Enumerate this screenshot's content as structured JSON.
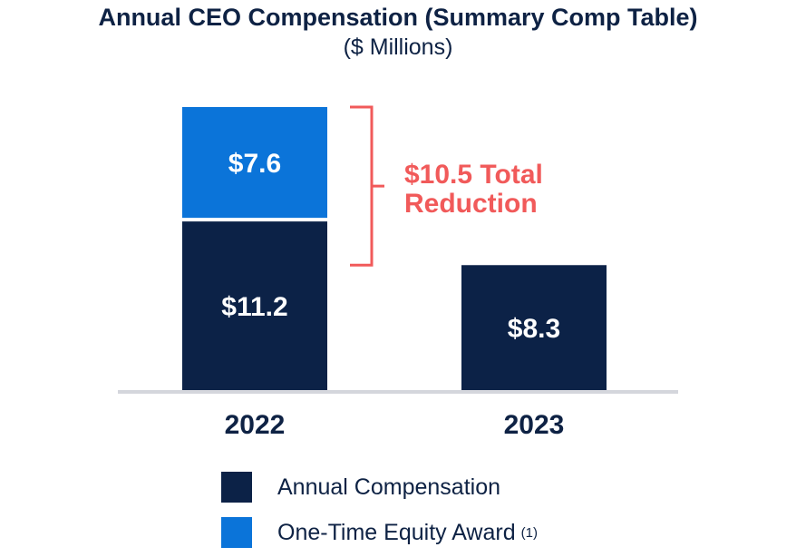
{
  "chart_data": {
    "type": "bar",
    "stacked": true,
    "title": "Annual CEO Compensation (Summary Comp Table)",
    "subtitle": "($ Millions)",
    "categories": [
      "2022",
      "2023"
    ],
    "series": [
      {
        "name": "Annual Compensation",
        "values": [
          11.2,
          8.3
        ],
        "labels": [
          "$11.2",
          "$8.3"
        ],
        "color": "#0c2247"
      },
      {
        "name": "One-Time Equity Award",
        "values": [
          7.6,
          0
        ],
        "labels": [
          "$7.6",
          ""
        ],
        "color": "#0b74d9"
      }
    ],
    "legend_note": "(1)",
    "annotation": {
      "lines": [
        "$10.5 Total",
        "Reduction"
      ],
      "color": "#f15a5a"
    },
    "ylim": [
      0,
      18.8
    ],
    "grid": false,
    "legend": "bottom"
  }
}
